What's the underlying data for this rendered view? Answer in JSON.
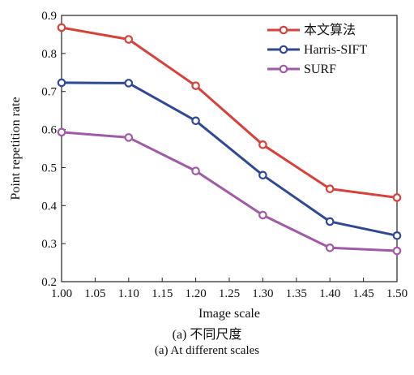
{
  "chart_data": {
    "type": "line",
    "x": [
      1.0,
      1.1,
      1.2,
      1.3,
      1.4,
      1.5
    ],
    "xticks": [
      "1.00",
      "1.05",
      "1.10",
      "1.15",
      "1.20",
      "1.25",
      "1.30",
      "1.35",
      "1.40",
      "1.45",
      "1.50"
    ],
    "yticks": [
      "0.2",
      "0.3",
      "0.4",
      "0.5",
      "0.6",
      "0.7",
      "0.8",
      "0.9"
    ],
    "xlim": [
      1.0,
      1.5
    ],
    "ylim": [
      0.2,
      0.9
    ],
    "xlabel": "Image scale",
    "ylabel": "Point repetition rate",
    "grid": false,
    "legend_position": "top-right",
    "series": [
      {
        "name": "本文算法",
        "color": "#d9403a",
        "values": [
          0.868,
          0.837,
          0.715,
          0.56,
          0.444,
          0.421
        ]
      },
      {
        "name": "Harris-SIFT",
        "color": "#2e4a96",
        "values": [
          0.723,
          0.722,
          0.623,
          0.48,
          0.358,
          0.321
        ]
      },
      {
        "name": "SURF",
        "color": "#a05aa8",
        "values": [
          0.593,
          0.579,
          0.491,
          0.375,
          0.289,
          0.281
        ]
      }
    ]
  },
  "captions": {
    "line1": "(a) 不同尺度",
    "line2": "(a) At different scales"
  }
}
